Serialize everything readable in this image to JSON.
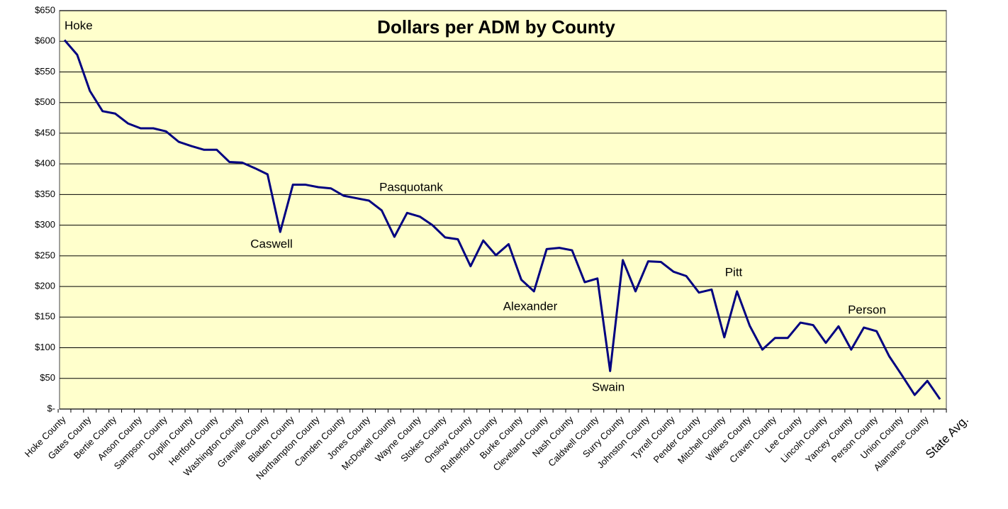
{
  "chart_data": {
    "type": "line",
    "title": "Dollars per ADM by County",
    "categories": [
      "Hoke County",
      null,
      "Gates County",
      null,
      "Bertie County",
      null,
      "Anson County",
      null,
      "Sampson County",
      null,
      "Duplin County",
      null,
      "Hertford County",
      null,
      "Washington County",
      null,
      "Granville County",
      null,
      "Bladen County",
      null,
      "Northampton County",
      null,
      "Camden County",
      null,
      "Jones County",
      null,
      "McDowell County",
      null,
      "Wayne County",
      null,
      "Stokes County",
      null,
      "Onslow County",
      null,
      "Rutherford County",
      null,
      "Burke County",
      null,
      "Cleveland County",
      null,
      "Nash County",
      null,
      "Caldwell County",
      null,
      "Surry County",
      null,
      "Johnston County",
      null,
      "Tyrrell County",
      null,
      "Pender County",
      null,
      "Mitchell County",
      null,
      "Wilkes County",
      null,
      "Craven County",
      null,
      "Lee County",
      null,
      "Lincoln County",
      null,
      "Yancey County",
      null,
      "Person County",
      null,
      "Union County",
      null,
      "Alamance County",
      null,
      "State Avg."
    ],
    "series": [
      {
        "color": "#000080",
        "values": [
          602,
          578,
          519,
          486,
          482,
          466,
          458,
          458,
          453,
          436,
          429,
          423,
          423,
          403,
          402,
          393,
          383,
          289,
          366,
          366,
          362,
          360,
          348,
          344,
          340,
          324,
          281,
          320,
          314,
          300,
          280,
          277,
          233,
          275,
          251,
          269,
          211,
          192,
          261,
          263,
          259,
          207,
          213,
          62,
          243,
          192,
          241,
          240,
          224,
          217,
          190,
          195,
          117,
          192,
          136,
          97,
          116,
          116,
          141,
          137,
          108,
          135,
          97,
          133,
          127,
          86,
          55,
          23,
          46,
          16,
          null
        ]
      }
    ],
    "annotations": [
      "Hoke",
      "Caswell",
      "Pasquotank",
      "Alexander",
      "Swain",
      "Pitt",
      "Person"
    ],
    "ylim": [
      0,
      650
    ],
    "yticks": [
      {
        "value": 0,
        "label": "$-"
      },
      {
        "value": 50,
        "label": "$50"
      },
      {
        "value": 100,
        "label": "$100"
      },
      {
        "value": 150,
        "label": "$150"
      },
      {
        "value": 200,
        "label": "$200"
      },
      {
        "value": 250,
        "label": "$250"
      },
      {
        "value": 300,
        "label": "$300"
      },
      {
        "value": 350,
        "label": "$350"
      },
      {
        "value": 400,
        "label": "$400"
      },
      {
        "value": 450,
        "label": "$450"
      },
      {
        "value": 500,
        "label": "$500"
      },
      {
        "value": 550,
        "label": "$550"
      },
      {
        "value": 600,
        "label": "$600"
      },
      {
        "value": 650,
        "label": "$650"
      }
    ],
    "grid": true,
    "background": "#FFFFCC"
  }
}
